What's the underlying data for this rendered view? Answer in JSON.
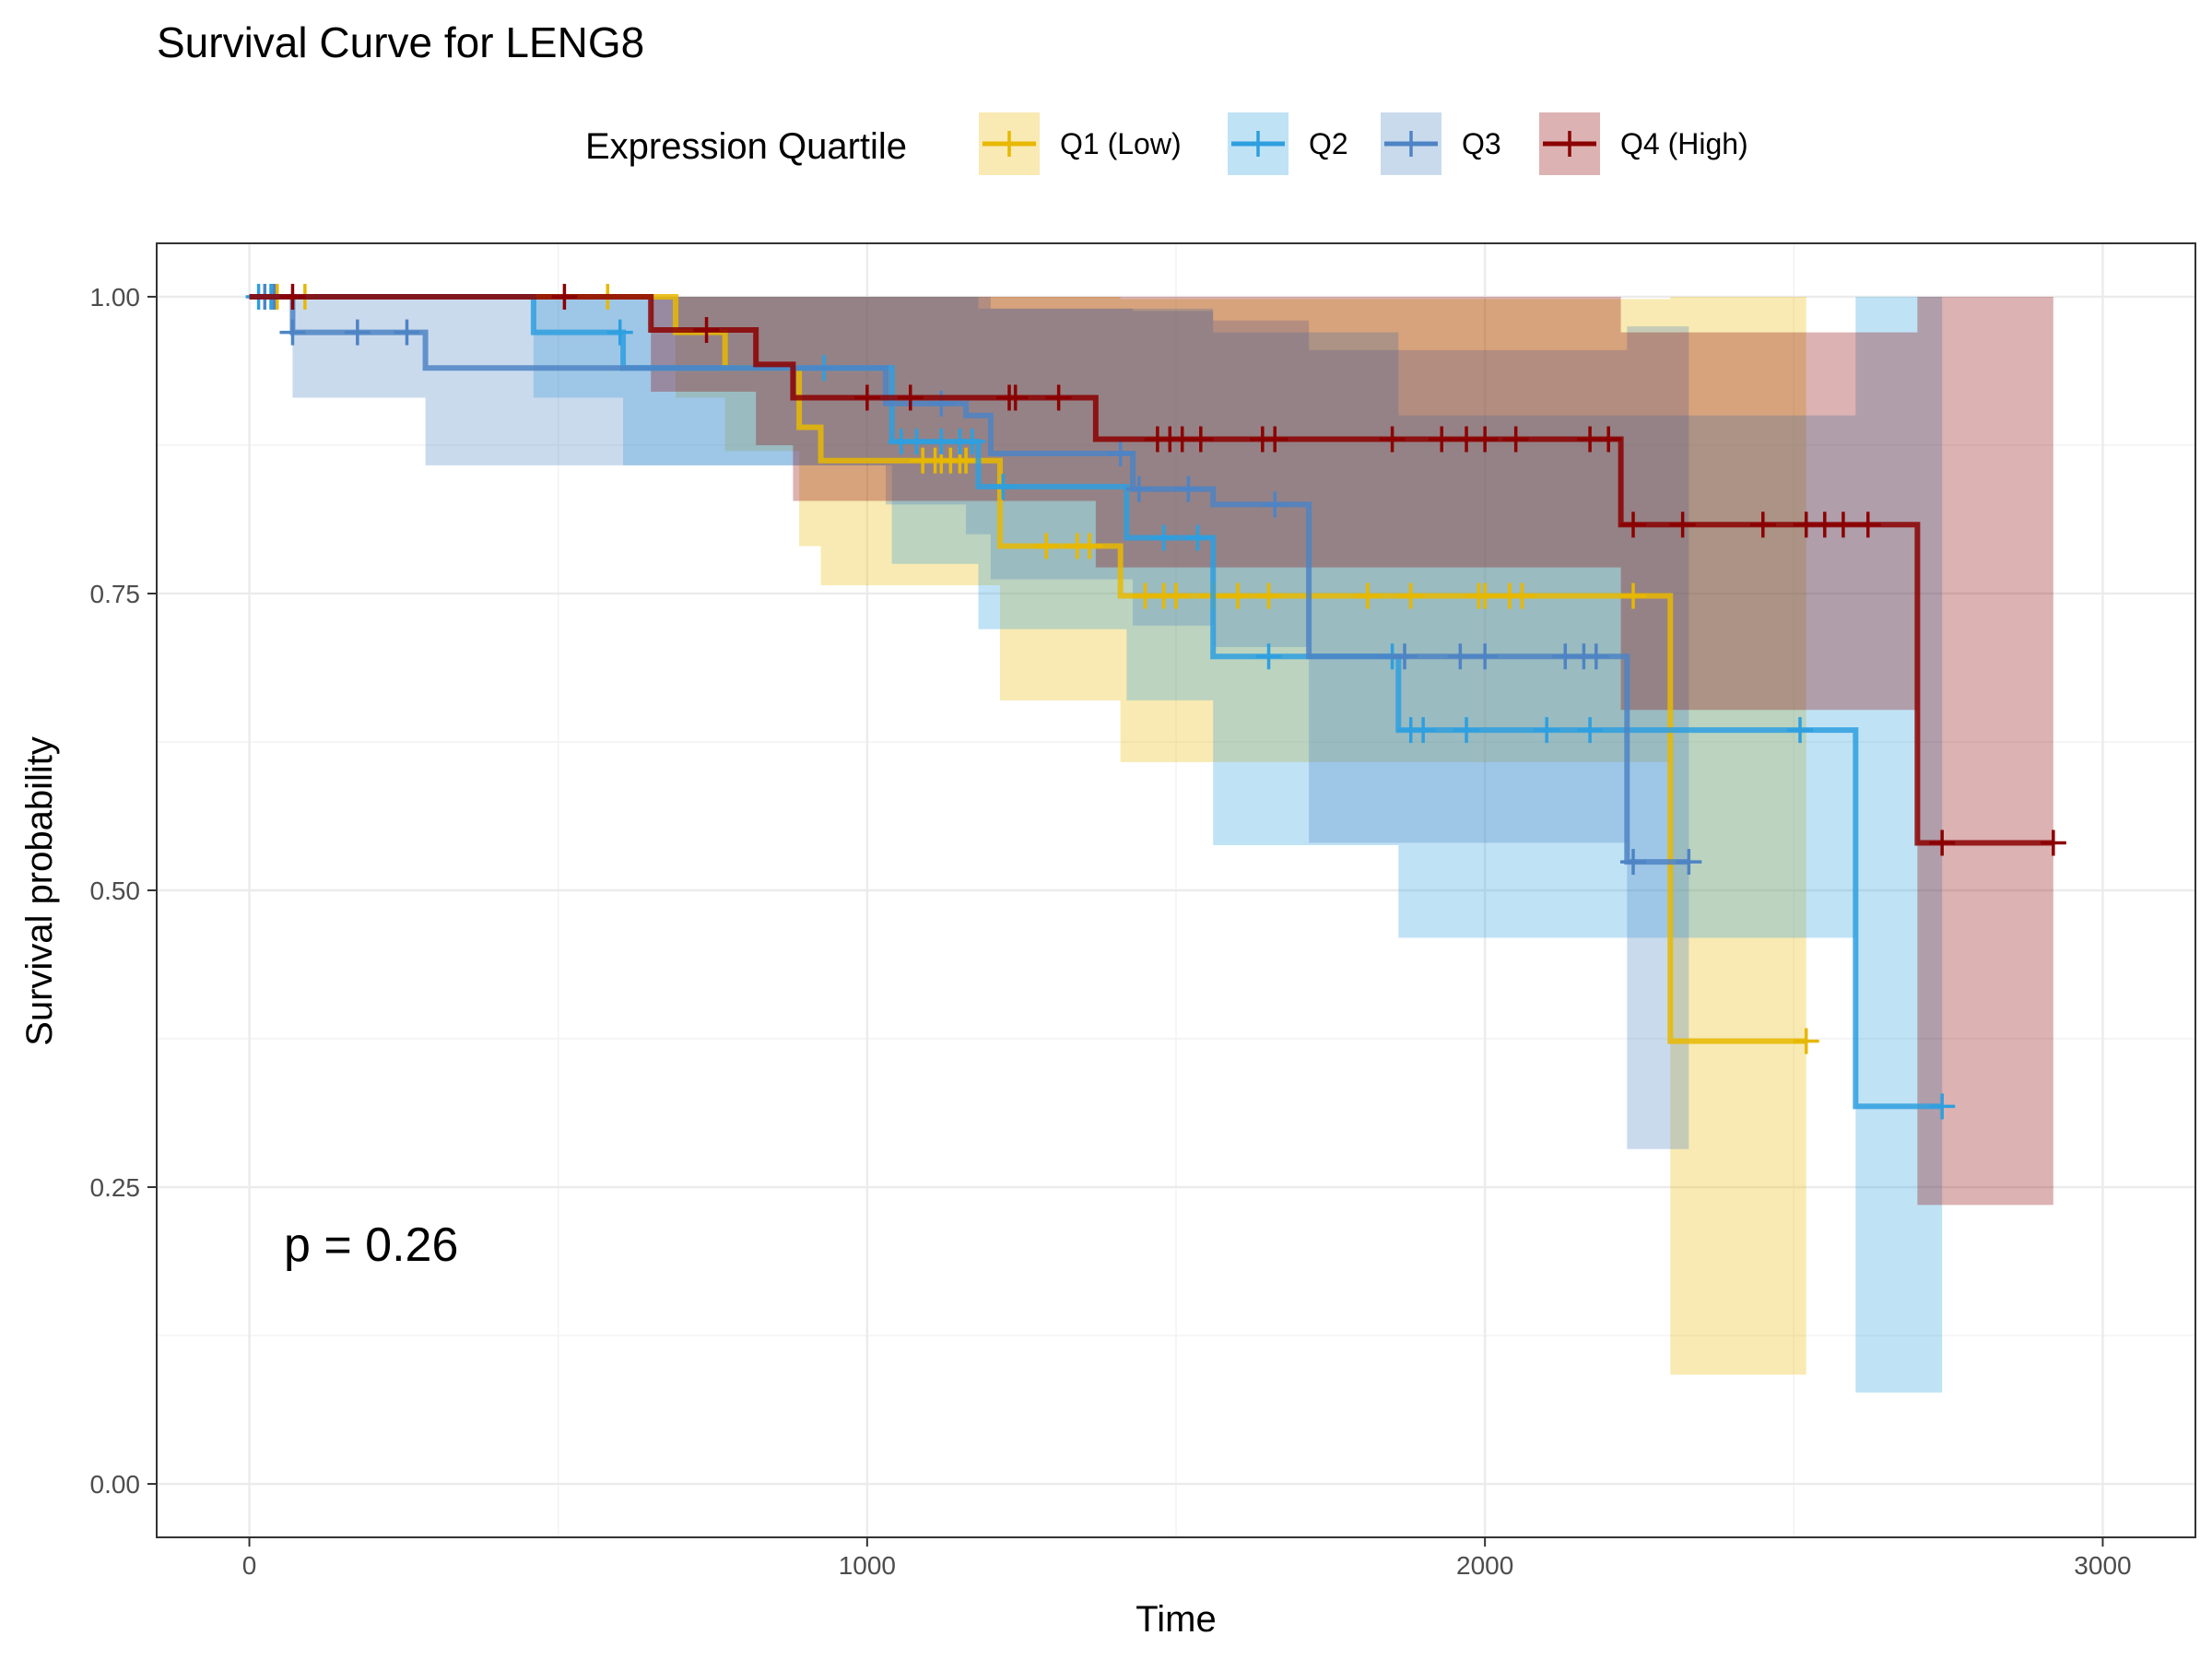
{
  "chart_data": {
    "type": "line",
    "subtype": "kaplan-meier",
    "title": "Survival Curve for LENG8",
    "xlabel": "Time",
    "ylabel": "Survival probability",
    "xlim": [
      -150,
      3150
    ],
    "ylim": [
      -0.045,
      1.045
    ],
    "xticks": [
      0,
      1000,
      2000,
      3000
    ],
    "xtick_labels": [
      "0",
      "1000",
      "2000",
      "3000"
    ],
    "yticks": [
      0,
      0.25,
      0.5,
      0.75,
      1.0
    ],
    "ytick_labels": [
      "0.00",
      "0.25",
      "0.50",
      "0.75",
      "1.00"
    ],
    "grid": true,
    "legend": {
      "title": "Expression Quartile",
      "placement": "top"
    },
    "annotation": "p = 0.26",
    "series": [
      {
        "name": "Q1 (Low)",
        "color": "#E7B800",
        "steps": [
          [
            0,
            1.0
          ],
          [
            690,
            0.97
          ],
          [
            770,
            0.94
          ],
          [
            890,
            0.89
          ],
          [
            925,
            0.862
          ],
          [
            1215,
            0.79
          ],
          [
            1410,
            0.748
          ],
          [
            2300,
            0.373
          ],
          [
            2520,
            0.373
          ]
        ],
        "ci": [
          [
            0,
            1.0,
            1.0
          ],
          [
            690,
            1.0,
            0.915
          ],
          [
            770,
            1.0,
            0.87
          ],
          [
            890,
            1.0,
            0.79
          ],
          [
            925,
            1.0,
            0.757
          ],
          [
            1215,
            1.0,
            0.66
          ],
          [
            1410,
            0.998,
            0.608
          ],
          [
            2300,
            1.0,
            0.092
          ],
          [
            2520,
            1.0,
            0.092
          ]
        ],
        "censor": [
          45,
          90,
          580,
          1090,
          1110,
          1120,
          1135,
          1150,
          1160,
          1290,
          1340,
          1360,
          1450,
          1480,
          1500,
          1560,
          1600,
          1650,
          1810,
          1880,
          1990,
          2000,
          2040,
          2060,
          2240,
          2520
        ]
      },
      {
        "name": "Q2",
        "color": "#2E9FDF",
        "steps": [
          [
            0,
            1.0
          ],
          [
            460,
            0.97
          ],
          [
            605,
            0.94
          ],
          [
            1040,
            0.878
          ],
          [
            1180,
            0.84
          ],
          [
            1420,
            0.797
          ],
          [
            1560,
            0.697
          ],
          [
            1860,
            0.635
          ],
          [
            2600,
            0.318
          ],
          [
            2740,
            0.318
          ]
        ],
        "ci": [
          [
            0,
            1.0,
            1.0
          ],
          [
            460,
            1.0,
            0.915
          ],
          [
            605,
            1.0,
            0.858
          ],
          [
            1040,
            1.0,
            0.775
          ],
          [
            1180,
            0.99,
            0.72
          ],
          [
            1420,
            0.99,
            0.66
          ],
          [
            1560,
            0.97,
            0.538
          ],
          [
            1860,
            0.9,
            0.46
          ],
          [
            2600,
            1.0,
            0.077
          ],
          [
            2740,
            1.0,
            0.077
          ]
        ],
        "censor": [
          15,
          35,
          600,
          930,
          1055,
          1080,
          1120,
          1150,
          1170,
          1220,
          1480,
          1535,
          1650,
          1850,
          1880,
          1900,
          1970,
          2100,
          2170,
          2510,
          2740
        ]
      },
      {
        "name": "Q3",
        "color": "#4E84C4",
        "steps": [
          [
            0,
            1.0
          ],
          [
            70,
            0.97
          ],
          [
            285,
            0.94
          ],
          [
            1030,
            0.91
          ],
          [
            1160,
            0.9
          ],
          [
            1200,
            0.868
          ],
          [
            1430,
            0.838
          ],
          [
            1560,
            0.825
          ],
          [
            1715,
            0.697
          ],
          [
            2230,
            0.524
          ],
          [
            2330,
            0.524
          ]
        ],
        "ci": [
          [
            0,
            1.0,
            1.0
          ],
          [
            70,
            1.0,
            0.915
          ],
          [
            285,
            1.0,
            0.858
          ],
          [
            1030,
            1.0,
            0.825
          ],
          [
            1160,
            1.0,
            0.8
          ],
          [
            1200,
            0.99,
            0.762
          ],
          [
            1430,
            0.988,
            0.723
          ],
          [
            1560,
            0.98,
            0.705
          ],
          [
            1715,
            0.955,
            0.54
          ],
          [
            2230,
            0.975,
            0.282
          ],
          [
            2330,
            0.975,
            0.282
          ]
        ],
        "censor": [
          25,
          40,
          70,
          175,
          255,
          1120,
          1410,
          1440,
          1520,
          1660,
          1870,
          1960,
          2000,
          2130,
          2160,
          2180,
          2240,
          2330
        ]
      },
      {
        "name": "Q4 (High)",
        "color": "#8B0000",
        "steps": [
          [
            0,
            1.0
          ],
          [
            650,
            0.972
          ],
          [
            820,
            0.943
          ],
          [
            880,
            0.915
          ],
          [
            1370,
            0.88
          ],
          [
            2220,
            0.808
          ],
          [
            2700,
            0.54
          ],
          [
            2920,
            0.54
          ]
        ],
        "ci": [
          [
            0,
            1.0,
            1.0
          ],
          [
            650,
            1.0,
            0.92
          ],
          [
            820,
            1.0,
            0.875
          ],
          [
            880,
            1.0,
            0.828
          ],
          [
            1370,
            1.0,
            0.772
          ],
          [
            2220,
            0.97,
            0.652
          ],
          [
            2700,
            1.0,
            0.235
          ],
          [
            2920,
            1.0,
            0.235
          ]
        ],
        "censor": [
          70,
          510,
          740,
          1000,
          1070,
          1230,
          1240,
          1310,
          1470,
          1490,
          1510,
          1540,
          1640,
          1660,
          1850,
          1930,
          1970,
          2000,
          2050,
          2170,
          2200,
          2240,
          2320,
          2450,
          2520,
          2550,
          2580,
          2620,
          2740,
          2920
        ]
      }
    ]
  }
}
